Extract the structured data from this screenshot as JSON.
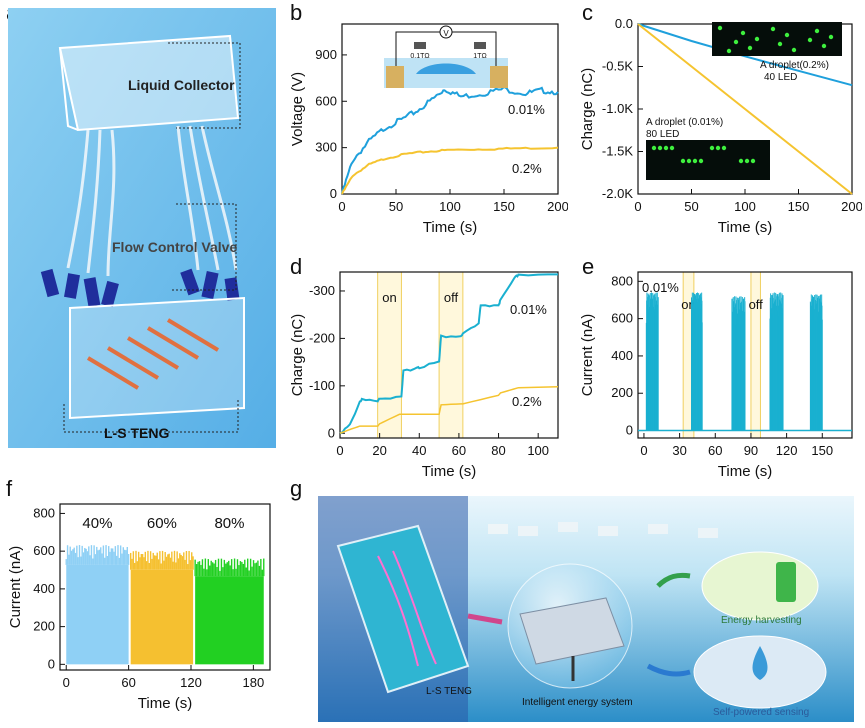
{
  "panels": {
    "a": {
      "letter": "a",
      "labels": {
        "collector": "Liquid Collector",
        "valve": "Flow Control Valve",
        "teng": "L-S TENG"
      }
    },
    "b": {
      "letter": "b"
    },
    "c": {
      "letter": "c"
    },
    "d": {
      "letter": "d"
    },
    "e": {
      "letter": "e"
    },
    "f": {
      "letter": "f"
    },
    "g": {
      "letter": "g",
      "labels": {
        "device": "L-S TENG",
        "system": "Intelligent energy system",
        "harvest": "Energy harvesting",
        "sensing": "Self-powered sensing"
      }
    }
  },
  "colors": {
    "blue": "#1fa0dc",
    "yellow": "#f5c430",
    "teal": "#1ab0d0",
    "light_blue": "#8fd0f5",
    "green": "#22d022",
    "orange": "#f5c030"
  },
  "chart_data": [
    {
      "id": "b",
      "type": "line",
      "xlabel": "Time (s)",
      "ylabel": "Voltage (V)",
      "xlim": [
        0,
        200
      ],
      "ylim": [
        0,
        1100
      ],
      "xticks": [
        0,
        50,
        100,
        150,
        200
      ],
      "yticks": [
        0,
        300,
        600,
        900
      ],
      "inset": {
        "r1": "0.1TΩ",
        "r2": "1TΩ",
        "meter": "V"
      },
      "series": [
        {
          "name": "0.01%",
          "color": "#1fa0dc",
          "x": [
            0,
            10,
            25,
            40,
            55,
            70,
            85,
            95,
            110,
            130,
            150,
            170,
            185,
            200
          ],
          "y": [
            0,
            220,
            340,
            430,
            480,
            540,
            620,
            680,
            630,
            650,
            680,
            650,
            670,
            660
          ]
        },
        {
          "name": "0.2%",
          "color": "#f5c430",
          "x": [
            0,
            10,
            25,
            40,
            60,
            80,
            100,
            130,
            160,
            200
          ],
          "y": [
            0,
            120,
            190,
            230,
            260,
            275,
            285,
            290,
            295,
            300
          ]
        }
      ]
    },
    {
      "id": "c",
      "type": "line",
      "xlabel": "Time (s)",
      "ylabel": "Charge (nC)",
      "xlim": [
        0,
        200
      ],
      "ylim": [
        -2.0,
        0
      ],
      "xticks": [
        0,
        50,
        100,
        150,
        200
      ],
      "yticks": [
        0.0,
        -0.5,
        -1.0,
        -1.5,
        -2.0
      ],
      "annotations": {
        "top_label": "A droplet(0.2%)",
        "top_led": "40 LED",
        "bottom_label": "A droplet (0.01%)",
        "bottom_led": "80 LED"
      },
      "series": [
        {
          "name": "0.2%",
          "color": "#1fa0dc",
          "x": [
            0,
            50,
            100,
            150,
            200
          ],
          "y": [
            0,
            -0.2,
            -0.38,
            -0.55,
            -0.72
          ]
        },
        {
          "name": "0.01%",
          "color": "#f5c430",
          "x": [
            0,
            50,
            100,
            150,
            200
          ],
          "y": [
            0,
            -0.5,
            -1.0,
            -1.5,
            -2.0
          ]
        }
      ]
    },
    {
      "id": "d",
      "type": "line",
      "xlabel": "Time (s)",
      "ylabel": "Charge (nC)",
      "xlim": [
        0,
        110
      ],
      "ylim": [
        -340,
        10
      ],
      "xticks": [
        0,
        20,
        40,
        60,
        80,
        100
      ],
      "yticks": [
        0,
        -100,
        -200,
        -300
      ],
      "ytick_labels": [
        "0",
        "-100",
        "-200",
        "-300"
      ],
      "bands": [
        [
          19,
          31
        ],
        [
          50,
          62
        ]
      ],
      "band_labels": [
        "on",
        "off"
      ],
      "series": [
        {
          "name": "0.01%",
          "color": "#1ab0d0",
          "x": [
            0,
            5,
            10,
            11,
            19,
            20,
            31,
            32,
            39,
            40,
            50,
            51,
            61,
            62,
            70,
            71,
            80,
            81,
            88,
            90,
            110
          ],
          "y": [
            0,
            -20,
            -65,
            -70,
            -70,
            -75,
            -75,
            -130,
            -140,
            -140,
            -150,
            -205,
            -205,
            -210,
            -230,
            -270,
            -270,
            -280,
            -325,
            -335,
            -335
          ]
        },
        {
          "name": "0.2%",
          "color": "#f5c430",
          "x": [
            0,
            5,
            10,
            19,
            20,
            30,
            31,
            50,
            51,
            61,
            62,
            80,
            81,
            90,
            110
          ],
          "y": [
            0,
            -8,
            -15,
            -15,
            -20,
            -40,
            -40,
            -40,
            -60,
            -62,
            -62,
            -80,
            -85,
            -96,
            -98
          ]
        }
      ]
    },
    {
      "id": "e",
      "type": "bar",
      "xlabel": "Time (s)",
      "ylabel": "Current (nA)",
      "xlim": [
        -5,
        175
      ],
      "ylim": [
        -40,
        850
      ],
      "xticks": [
        0,
        30,
        60,
        90,
        120,
        150
      ],
      "yticks": [
        0,
        200,
        400,
        600,
        800
      ],
      "bands": [
        [
          33,
          42
        ],
        [
          90,
          98
        ]
      ],
      "band_labels": [
        "on",
        "off"
      ],
      "legend_text": "0.01%",
      "bursts": [
        {
          "start": 2,
          "end": 12,
          "peak": 740
        },
        {
          "start": 40,
          "end": 49,
          "peak": 740
        },
        {
          "start": 74,
          "end": 85,
          "peak": 720
        },
        {
          "start": 106,
          "end": 117,
          "peak": 740
        },
        {
          "start": 140,
          "end": 150,
          "peak": 730
        }
      ],
      "series": [
        {
          "name": "0.01%",
          "color": "#1ab0d0"
        }
      ]
    },
    {
      "id": "f",
      "type": "bar",
      "xlabel": "Time (s)",
      "ylabel": "Current (nA)",
      "xlim": [
        -6,
        196
      ],
      "ylim": [
        -30,
        850
      ],
      "xticks": [
        0,
        60,
        120,
        180
      ],
      "yticks": [
        0,
        200,
        400,
        600,
        800
      ],
      "series": [
        {
          "name": "40%",
          "color": "#8fd0f5",
          "range": [
            0,
            60
          ],
          "level": 620
        },
        {
          "name": "60%",
          "color": "#f5c030",
          "range": [
            62,
            122
          ],
          "level": 590
        },
        {
          "name": "80%",
          "color": "#22d022",
          "range": [
            124,
            190
          ],
          "level": 550
        }
      ]
    }
  ]
}
